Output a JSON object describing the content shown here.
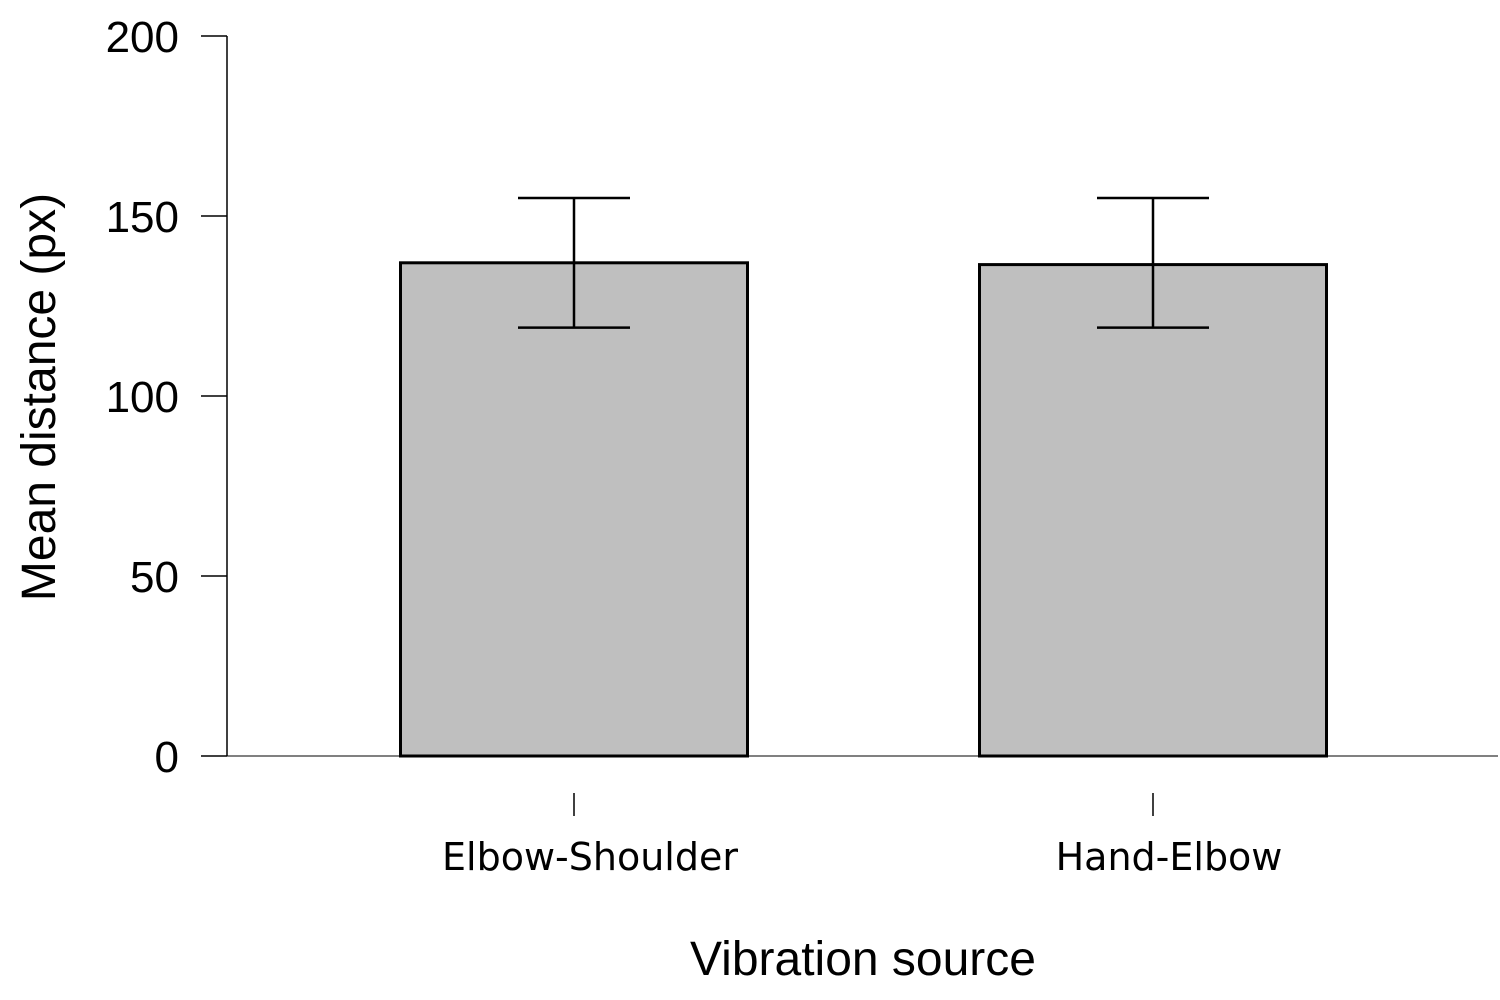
{
  "chart_data": {
    "type": "bar",
    "categories": [
      "Elbow-Shoulder",
      "Hand-Elbow"
    ],
    "values": [
      137,
      136.5
    ],
    "error_bars": {
      "upper": [
        155,
        155
      ],
      "lower": [
        119,
        119
      ]
    },
    "xlabel": "Vibration source",
    "ylabel": "Mean distance (px)",
    "ylim": [
      0,
      200
    ],
    "yticks": [
      0,
      50,
      100,
      150,
      200
    ],
    "grid": false,
    "bar_color": "#bfbfbf",
    "bar_edge_color": "#000000"
  }
}
